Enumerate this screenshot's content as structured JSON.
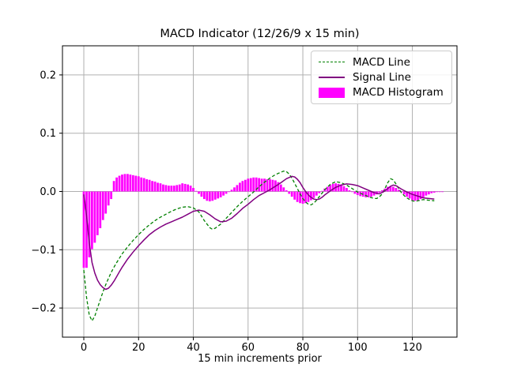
{
  "figure": {
    "kind": "matplotlib-style static chart window"
  },
  "chart_data": {
    "type": "line+bar",
    "title": "MACD Indicator (12/26/9 x 15 min)",
    "xlabel": "15 min increments prior",
    "ylabel": "",
    "grid": true,
    "legend_position": "upper right",
    "xlim": [
      -7.8,
      136.3
    ],
    "ylim": [
      -0.25,
      0.25
    ],
    "xticks": [
      0,
      20,
      40,
      60,
      80,
      100,
      120
    ],
    "yticks": [
      -0.2,
      -0.1,
      0.0,
      0.1,
      0.2
    ],
    "ytick_labels": [
      "−0.2",
      "−0.1",
      "0.0",
      "0.1",
      "0.2"
    ],
    "colors": {
      "macd_line": "#008000",
      "signal_line": "#800080",
      "histogram": "#ff00ff",
      "grid": "#b0b0b0",
      "spine": "#000000"
    },
    "series": [
      {
        "name": "MACD Line",
        "kind": "line",
        "style": "dashed",
        "width": 1.3,
        "color": "#008000",
        "x": [
          0,
          1,
          2,
          3,
          4,
          5,
          6,
          7,
          8,
          9,
          10,
          11,
          12,
          14,
          16,
          18,
          20,
          22,
          24,
          26,
          28,
          30,
          32,
          34,
          36,
          38,
          40,
          42,
          44,
          46,
          47,
          48,
          50,
          52,
          54,
          56,
          58,
          60,
          62,
          64,
          66,
          68,
          70,
          72,
          73,
          74,
          75,
          76,
          77,
          78,
          79,
          80,
          81,
          82,
          83,
          84,
          85,
          86,
          87,
          88,
          90,
          92,
          94,
          96,
          98,
          100,
          102,
          104,
          106,
          107,
          108,
          109,
          110,
          111,
          112,
          113,
          114,
          115,
          116,
          117,
          118,
          119,
          120,
          121,
          122,
          124,
          126,
          128
        ],
        "y": [
          -0.135,
          -0.182,
          -0.212,
          -0.222,
          -0.214,
          -0.2,
          -0.186,
          -0.172,
          -0.16,
          -0.149,
          -0.139,
          -0.13,
          -0.122,
          -0.107,
          -0.095,
          -0.084,
          -0.074,
          -0.065,
          -0.057,
          -0.05,
          -0.044,
          -0.039,
          -0.034,
          -0.03,
          -0.027,
          -0.026,
          -0.028,
          -0.035,
          -0.05,
          -0.062,
          -0.065,
          -0.063,
          -0.056,
          -0.046,
          -0.036,
          -0.026,
          -0.017,
          -0.009,
          -0.001,
          0.008,
          0.016,
          0.023,
          0.029,
          0.033,
          0.035,
          0.034,
          0.03,
          0.023,
          0.014,
          0.005,
          -0.004,
          -0.012,
          -0.018,
          -0.022,
          -0.023,
          -0.02,
          -0.015,
          -0.009,
          -0.003,
          0.003,
          0.012,
          0.017,
          0.015,
          0.011,
          0.005,
          -0.001,
          -0.005,
          -0.009,
          -0.012,
          -0.012,
          -0.009,
          -0.004,
          0.005,
          0.015,
          0.022,
          0.02,
          0.013,
          0.005,
          -0.002,
          -0.007,
          -0.011,
          -0.014,
          -0.016,
          -0.017,
          -0.016,
          -0.014,
          -0.015,
          -0.016
        ]
      },
      {
        "name": "Signal Line",
        "kind": "line",
        "style": "solid",
        "width": 1.5,
        "color": "#800080",
        "x": [
          0,
          1,
          2,
          3,
          4,
          5,
          6,
          7,
          8,
          9,
          10,
          11,
          12,
          13,
          14,
          16,
          18,
          20,
          22,
          24,
          26,
          28,
          30,
          32,
          34,
          36,
          38,
          40,
          42,
          44,
          46,
          48,
          50,
          52,
          54,
          56,
          58,
          60,
          62,
          64,
          66,
          68,
          70,
          72,
          74,
          76,
          77,
          78,
          79,
          80,
          81,
          82,
          83,
          84,
          85,
          86,
          87,
          88,
          90,
          92,
          94,
          96,
          98,
          100,
          102,
          104,
          106,
          108,
          110,
          112,
          113,
          114,
          116,
          118,
          120,
          122,
          124,
          126,
          128
        ],
        "y": [
          -0.005,
          -0.042,
          -0.088,
          -0.122,
          -0.14,
          -0.152,
          -0.16,
          -0.165,
          -0.168,
          -0.166,
          -0.161,
          -0.154,
          -0.146,
          -0.138,
          -0.13,
          -0.116,
          -0.104,
          -0.093,
          -0.083,
          -0.074,
          -0.067,
          -0.061,
          -0.056,
          -0.052,
          -0.048,
          -0.044,
          -0.039,
          -0.034,
          -0.032,
          -0.034,
          -0.04,
          -0.047,
          -0.052,
          -0.051,
          -0.046,
          -0.038,
          -0.029,
          -0.022,
          -0.014,
          -0.007,
          -0.002,
          0.003,
          0.009,
          0.015,
          0.022,
          0.026,
          0.025,
          0.021,
          0.015,
          0.007,
          0.0,
          -0.006,
          -0.01,
          -0.013,
          -0.014,
          -0.013,
          -0.01,
          -0.006,
          0.001,
          0.007,
          0.011,
          0.013,
          0.012,
          0.01,
          0.006,
          0.002,
          -0.002,
          -0.004,
          0.001,
          0.009,
          0.011,
          0.01,
          0.004,
          -0.001,
          -0.005,
          -0.008,
          -0.011,
          -0.012,
          -0.013
        ]
      },
      {
        "name": "MACD Histogram",
        "kind": "bar",
        "color": "#ff00ff",
        "bar_width": 0.8,
        "x_start": 0,
        "x_step": 1,
        "values": [
          -0.131,
          -0.131,
          -0.113,
          -0.099,
          -0.088,
          -0.075,
          -0.063,
          -0.049,
          -0.038,
          -0.024,
          -0.013,
          0.018,
          0.024,
          0.027,
          0.029,
          0.03,
          0.03,
          0.029,
          0.028,
          0.027,
          0.026,
          0.024,
          0.023,
          0.021,
          0.02,
          0.018,
          0.017,
          0.015,
          0.014,
          0.012,
          0.011,
          0.01,
          0.01,
          0.01,
          0.011,
          0.012,
          0.014,
          0.013,
          0.012,
          0.01,
          0.006,
          0.001,
          -0.004,
          -0.009,
          -0.013,
          -0.016,
          -0.017,
          -0.016,
          -0.014,
          -0.012,
          -0.01,
          -0.007,
          -0.004,
          -0.001,
          0.003,
          0.007,
          0.011,
          0.015,
          0.018,
          0.02,
          0.022,
          0.023,
          0.024,
          0.024,
          0.023,
          0.022,
          0.022,
          0.021,
          0.021,
          0.02,
          0.019,
          0.016,
          0.012,
          0.007,
          0.002,
          -0.004,
          -0.009,
          -0.014,
          -0.018,
          -0.02,
          -0.021,
          -0.02,
          -0.018,
          -0.015,
          -0.011,
          -0.007,
          -0.003,
          0.001,
          0.005,
          0.008,
          0.011,
          0.013,
          0.014,
          0.013,
          0.012,
          0.009,
          0.006,
          0.002,
          -0.001,
          -0.004,
          -0.006,
          -0.008,
          -0.009,
          -0.01,
          -0.01,
          -0.009,
          -0.007,
          -0.005,
          -0.002,
          0.002,
          0.005,
          0.008,
          0.009,
          0.008,
          0.006,
          0.003,
          -0.001,
          -0.005,
          -0.009,
          -0.012,
          -0.015,
          -0.016,
          -0.015,
          -0.013,
          -0.01,
          -0.007,
          -0.005,
          -0.003,
          -0.002,
          -0.001,
          -0.001,
          -0.001
        ]
      }
    ]
  }
}
